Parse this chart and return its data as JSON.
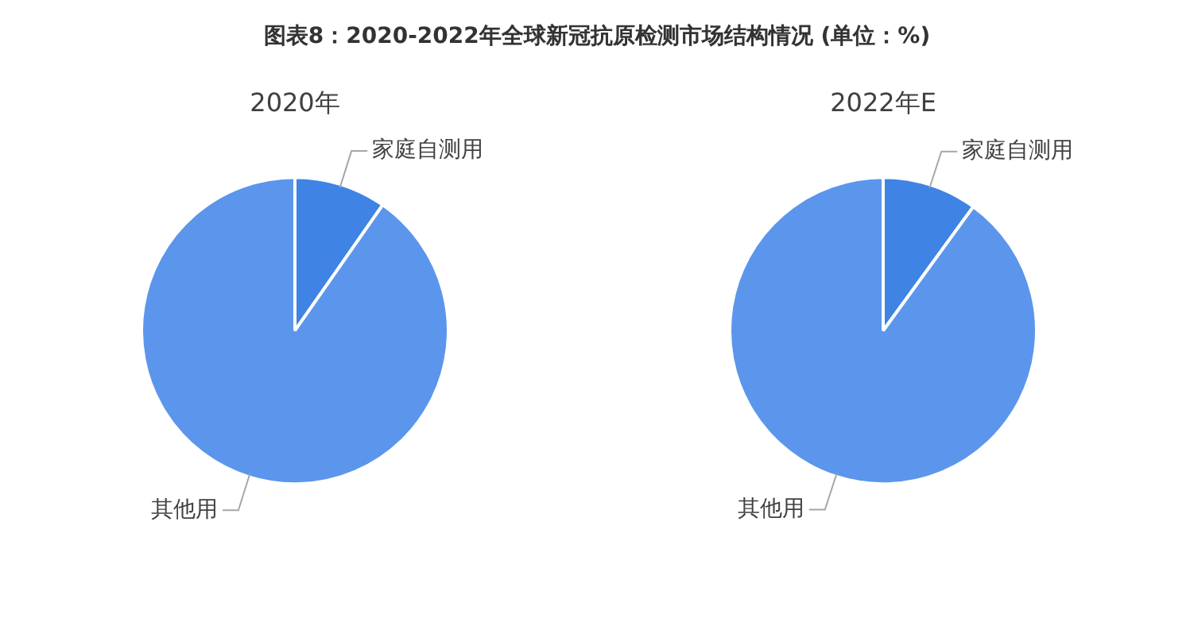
{
  "chart_data": [
    {
      "type": "pie",
      "title": "图表8：2020-2022年全球新冠抗原检测市场结构情况 (单位：%)",
      "subtitle": "2020年",
      "categories": [
        "家庭自测用",
        "其他用"
      ],
      "values": [
        9.7,
        90.3
      ],
      "colors": [
        "#3f83e4",
        "#5b96ec"
      ],
      "legend": false
    },
    {
      "type": "pie",
      "subtitle": "2022年E",
      "categories": [
        "家庭自测用",
        "其他用"
      ],
      "values": [
        10,
        90
      ],
      "colors": [
        "#3f83e4",
        "#5b96ec"
      ],
      "legend": false
    }
  ]
}
